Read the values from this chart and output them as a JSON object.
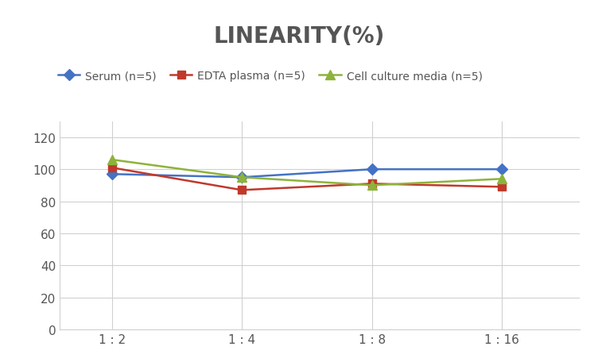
{
  "title": "LINEARITY(%)",
  "x_labels": [
    "1 : 2",
    "1 : 4",
    "1 : 8",
    "1 : 16"
  ],
  "x_positions": [
    0,
    1,
    2,
    3
  ],
  "series": [
    {
      "label": "Serum (n=5)",
      "values": [
        97,
        95,
        100,
        100
      ],
      "color": "#4472C4",
      "marker": "D",
      "markersize": 7,
      "linewidth": 1.8
    },
    {
      "label": "EDTA plasma (n=5)",
      "values": [
        101,
        87,
        91,
        89
      ],
      "color": "#C0392B",
      "marker": "s",
      "markersize": 7,
      "linewidth": 1.8
    },
    {
      "label": "Cell culture media (n=5)",
      "values": [
        106,
        95,
        90,
        94
      ],
      "color": "#8DB33A",
      "marker": "^",
      "markersize": 8,
      "linewidth": 1.8
    }
  ],
  "ylim": [
    0,
    130
  ],
  "yticks": [
    0,
    20,
    40,
    60,
    80,
    100,
    120
  ],
  "title_fontsize": 20,
  "title_fontweight": "bold",
  "title_color": "#555555",
  "legend_fontsize": 10,
  "tick_fontsize": 11,
  "background_color": "#ffffff",
  "grid_color": "#d0d0d0"
}
